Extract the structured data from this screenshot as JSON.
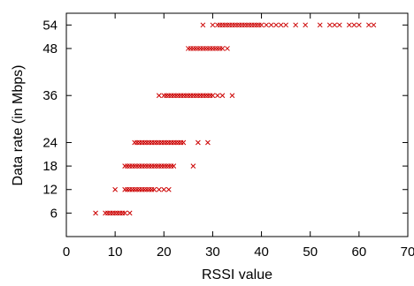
{
  "chart_data": {
    "type": "scatter",
    "title": "",
    "xlabel": "RSSI value",
    "ylabel": "Data rate (in Mbps)",
    "xlim": [
      0,
      70
    ],
    "ylim": [
      0,
      57
    ],
    "xticks": [
      0,
      10,
      20,
      30,
      40,
      50,
      60,
      70
    ],
    "yticks": [
      6,
      12,
      18,
      24,
      36,
      48,
      54
    ],
    "grid": false,
    "legend": "none",
    "marker": "x",
    "color": "#cc0000",
    "series": [
      {
        "points": [
          [
            6,
            6
          ],
          [
            8,
            6
          ],
          [
            8.5,
            6
          ],
          [
            9,
            6
          ],
          [
            9.5,
            6
          ],
          [
            10,
            6
          ],
          [
            10.5,
            6
          ],
          [
            11,
            6
          ],
          [
            11.5,
            6
          ],
          [
            12,
            6
          ],
          [
            13,
            6
          ],
          [
            10,
            12
          ],
          [
            12,
            12
          ],
          [
            12.5,
            12
          ],
          [
            13,
            12
          ],
          [
            13.5,
            12
          ],
          [
            14,
            12
          ],
          [
            14.5,
            12
          ],
          [
            15,
            12
          ],
          [
            15.5,
            12
          ],
          [
            16,
            12
          ],
          [
            16.5,
            12
          ],
          [
            17,
            12
          ],
          [
            17.5,
            12
          ],
          [
            18,
            12
          ],
          [
            19,
            12
          ],
          [
            20,
            12
          ],
          [
            21,
            12
          ],
          [
            12,
            18
          ],
          [
            12.5,
            18
          ],
          [
            13,
            18
          ],
          [
            13.5,
            18
          ],
          [
            14,
            18
          ],
          [
            14.5,
            18
          ],
          [
            15,
            18
          ],
          [
            15.5,
            18
          ],
          [
            16,
            18
          ],
          [
            16.5,
            18
          ],
          [
            17,
            18
          ],
          [
            17.5,
            18
          ],
          [
            18,
            18
          ],
          [
            18.5,
            18
          ],
          [
            19,
            18
          ],
          [
            19.5,
            18
          ],
          [
            20,
            18
          ],
          [
            20.5,
            18
          ],
          [
            21,
            18
          ],
          [
            21.5,
            18
          ],
          [
            22,
            18
          ],
          [
            26,
            18
          ],
          [
            14,
            24
          ],
          [
            14.5,
            24
          ],
          [
            15,
            24
          ],
          [
            15.5,
            24
          ],
          [
            16,
            24
          ],
          [
            16.5,
            24
          ],
          [
            17,
            24
          ],
          [
            17.5,
            24
          ],
          [
            18,
            24
          ],
          [
            18.5,
            24
          ],
          [
            19,
            24
          ],
          [
            19.5,
            24
          ],
          [
            20,
            24
          ],
          [
            20.5,
            24
          ],
          [
            21,
            24
          ],
          [
            21.5,
            24
          ],
          [
            22,
            24
          ],
          [
            22.5,
            24
          ],
          [
            23,
            24
          ],
          [
            23.5,
            24
          ],
          [
            24,
            24
          ],
          [
            27,
            24
          ],
          [
            29,
            24
          ],
          [
            19,
            36
          ],
          [
            20,
            36
          ],
          [
            20.5,
            36
          ],
          [
            21,
            36
          ],
          [
            21.5,
            36
          ],
          [
            22,
            36
          ],
          [
            22.5,
            36
          ],
          [
            23,
            36
          ],
          [
            23.5,
            36
          ],
          [
            24,
            36
          ],
          [
            24.5,
            36
          ],
          [
            25,
            36
          ],
          [
            25.5,
            36
          ],
          [
            26,
            36
          ],
          [
            26.5,
            36
          ],
          [
            27,
            36
          ],
          [
            27.5,
            36
          ],
          [
            28,
            36
          ],
          [
            28.5,
            36
          ],
          [
            29,
            36
          ],
          [
            29.5,
            36
          ],
          [
            30,
            36
          ],
          [
            31,
            36
          ],
          [
            32,
            36
          ],
          [
            34,
            36
          ],
          [
            25,
            48
          ],
          [
            25.5,
            48
          ],
          [
            26,
            48
          ],
          [
            26.5,
            48
          ],
          [
            27,
            48
          ],
          [
            27.5,
            48
          ],
          [
            28,
            48
          ],
          [
            28.5,
            48
          ],
          [
            29,
            48
          ],
          [
            29.5,
            48
          ],
          [
            30,
            48
          ],
          [
            30.5,
            48
          ],
          [
            31,
            48
          ],
          [
            31.5,
            48
          ],
          [
            32,
            48
          ],
          [
            33,
            48
          ],
          [
            28,
            54
          ],
          [
            30,
            54
          ],
          [
            31,
            54
          ],
          [
            31.5,
            54
          ],
          [
            32,
            54
          ],
          [
            32.5,
            54
          ],
          [
            33,
            54
          ],
          [
            33.5,
            54
          ],
          [
            34,
            54
          ],
          [
            34.5,
            54
          ],
          [
            35,
            54
          ],
          [
            35.5,
            54
          ],
          [
            36,
            54
          ],
          [
            36.5,
            54
          ],
          [
            37,
            54
          ],
          [
            37.5,
            54
          ],
          [
            38,
            54
          ],
          [
            38.5,
            54
          ],
          [
            39,
            54
          ],
          [
            39.5,
            54
          ],
          [
            40,
            54
          ],
          [
            41,
            54
          ],
          [
            42,
            54
          ],
          [
            43,
            54
          ],
          [
            44,
            54
          ],
          [
            45,
            54
          ],
          [
            47,
            54
          ],
          [
            49,
            54
          ],
          [
            52,
            54
          ],
          [
            54,
            54
          ],
          [
            55,
            54
          ],
          [
            56,
            54
          ],
          [
            58,
            54
          ],
          [
            59,
            54
          ],
          [
            60,
            54
          ],
          [
            62,
            54
          ],
          [
            63,
            54
          ]
        ]
      }
    ]
  }
}
